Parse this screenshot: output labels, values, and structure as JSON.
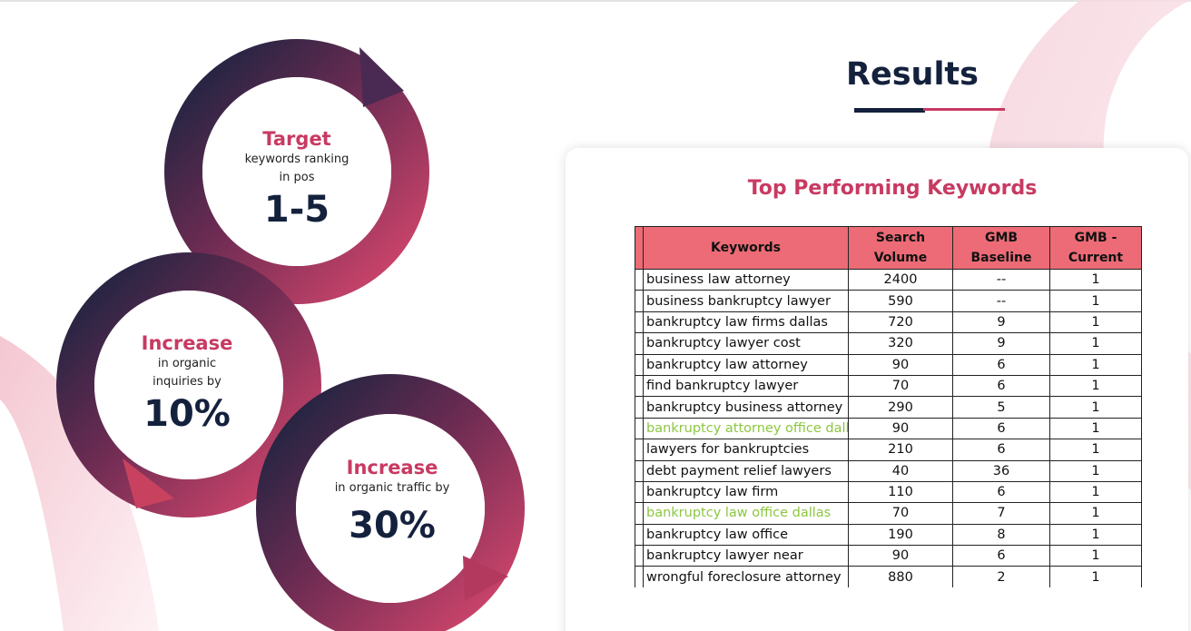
{
  "colors": {
    "accent_pink": "#c83a62",
    "navy": "#14213d",
    "table_header": "#ec6b76",
    "highlight_green": "#8cc63f"
  },
  "circles": [
    {
      "heading": "Target",
      "lines": [
        "keywords ranking",
        "in pos"
      ],
      "value": "1-5"
    },
    {
      "heading": "Increase",
      "lines": [
        "in organic",
        "inquiries by"
      ],
      "value": "10%"
    },
    {
      "heading": "Increase",
      "lines": [
        "in organic traffic by"
      ],
      "value": "30%"
    }
  ],
  "results": {
    "title": "Results"
  },
  "card": {
    "title": "Top Performing Keywords"
  },
  "table": {
    "headers": {
      "keywords": "Keywords",
      "search_volume_1": "Search",
      "search_volume_2": "Volume",
      "gmb_baseline": "GMB Baseline",
      "gmb_current_1": "GMB -",
      "gmb_current_2": "Current"
    },
    "rows": [
      {
        "keyword": "business law attorney",
        "volume": "2400",
        "baseline": "--",
        "current": "1",
        "highlight": false
      },
      {
        "keyword": "business bankruptcy lawyer",
        "volume": "590",
        "baseline": "--",
        "current": "1",
        "highlight": false
      },
      {
        "keyword": "bankruptcy law firms dallas",
        "volume": "720",
        "baseline": "9",
        "current": "1",
        "highlight": false
      },
      {
        "keyword": "bankruptcy lawyer cost",
        "volume": "320",
        "baseline": "9",
        "current": "1",
        "highlight": false
      },
      {
        "keyword": "bankruptcy law attorney",
        "volume": "90",
        "baseline": "6",
        "current": "1",
        "highlight": false
      },
      {
        "keyword": "find bankruptcy lawyer",
        "volume": "70",
        "baseline": "6",
        "current": "1",
        "highlight": false
      },
      {
        "keyword": "bankruptcy business attorney",
        "volume": "290",
        "baseline": "5",
        "current": "1",
        "highlight": false
      },
      {
        "keyword": "bankruptcy attorney office dalla",
        "volume": "90",
        "baseline": "6",
        "current": "1",
        "highlight": true
      },
      {
        "keyword": "lawyers for bankruptcies",
        "volume": "210",
        "baseline": "6",
        "current": "1",
        "highlight": false
      },
      {
        "keyword": "debt payment relief lawyers",
        "volume": "40",
        "baseline": "36",
        "current": "1",
        "highlight": false
      },
      {
        "keyword": "bankruptcy law firm",
        "volume": "110",
        "baseline": "6",
        "current": "1",
        "highlight": false
      },
      {
        "keyword": "bankruptcy law office dallas",
        "volume": "70",
        "baseline": "7",
        "current": "1",
        "highlight": true
      },
      {
        "keyword": "bankruptcy law office",
        "volume": "190",
        "baseline": "8",
        "current": "1",
        "highlight": false
      },
      {
        "keyword": "bankruptcy lawyer near",
        "volume": "90",
        "baseline": "6",
        "current": "1",
        "highlight": false
      },
      {
        "keyword": "wrongful foreclosure attorney",
        "volume": "880",
        "baseline": "2",
        "current": "1",
        "highlight": false
      }
    ]
  }
}
